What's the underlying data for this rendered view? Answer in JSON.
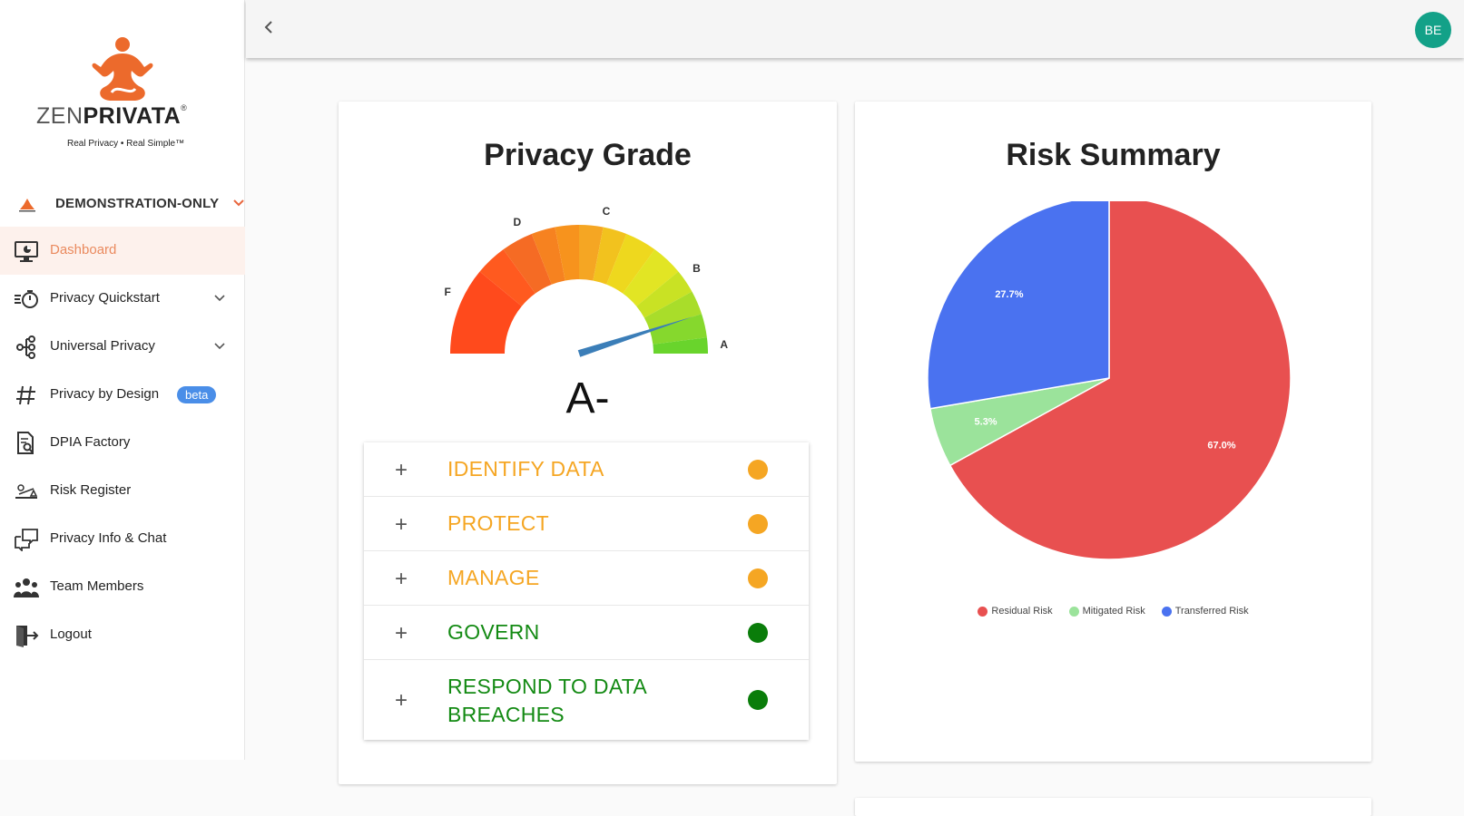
{
  "brand": {
    "word_light": "ZEN",
    "word_bold": "PRIVATA",
    "registered": "®",
    "tagline": "Real Privacy • Real Simple™"
  },
  "org": {
    "name": "DEMONSTRATION-ONLY"
  },
  "nav": [
    {
      "label": "Dashboard",
      "icon": "dashboard-monitor-icon",
      "active": true
    },
    {
      "label": "Privacy Quickstart",
      "icon": "stopwatch-icon",
      "expandable": true
    },
    {
      "label": "Universal Privacy",
      "icon": "network-tree-icon",
      "expandable": true
    },
    {
      "label": "Privacy by Design",
      "icon": "hashtag-icon",
      "badge": "beta"
    },
    {
      "label": "DPIA Factory",
      "icon": "document-search-icon"
    },
    {
      "label": "Risk Register",
      "icon": "scale-icon"
    },
    {
      "label": "Privacy Info & Chat",
      "icon": "chat-bubbles-icon"
    },
    {
      "label": "Team Members",
      "icon": "team-icon"
    },
    {
      "label": "Logout",
      "icon": "logout-door-icon"
    }
  ],
  "topbar": {
    "avatar_initials": "BE"
  },
  "grade_card": {
    "title": "Privacy Grade",
    "grade": "A-",
    "gauge_letters": [
      "F",
      "D",
      "C",
      "B",
      "A"
    ],
    "needle_fraction": 0.9,
    "pillars": [
      {
        "label": "IDENTIFY DATA",
        "color": "#f5a623",
        "status_color": "#f5a623"
      },
      {
        "label": "PROTECT",
        "color": "#f5a623",
        "status_color": "#f5a623"
      },
      {
        "label": "MANAGE",
        "color": "#f5a623",
        "status_color": "#f5a623"
      },
      {
        "label": "GOVERN",
        "color": "#138a13",
        "status_color": "#0a7d0a"
      },
      {
        "label": "RESPOND TO DATA BREACHES",
        "line1": "RESPOND TO DATA",
        "line2": "BREACHES",
        "color": "#138a13",
        "status_color": "#0a7d0a"
      }
    ]
  },
  "risk_card": {
    "title": "Risk Summary"
  },
  "chart_data": {
    "type": "pie",
    "title": "Risk Summary",
    "categories": [
      "Residual Risk",
      "Mitigated Risk",
      "Transferred Risk"
    ],
    "values": [
      67.0,
      5.3,
      27.7
    ],
    "labels": [
      "67.0%",
      "5.3%",
      "27.7%"
    ],
    "colors": [
      "#e85050",
      "#9be39b",
      "#4a72f0"
    ],
    "legend": "bottom"
  }
}
